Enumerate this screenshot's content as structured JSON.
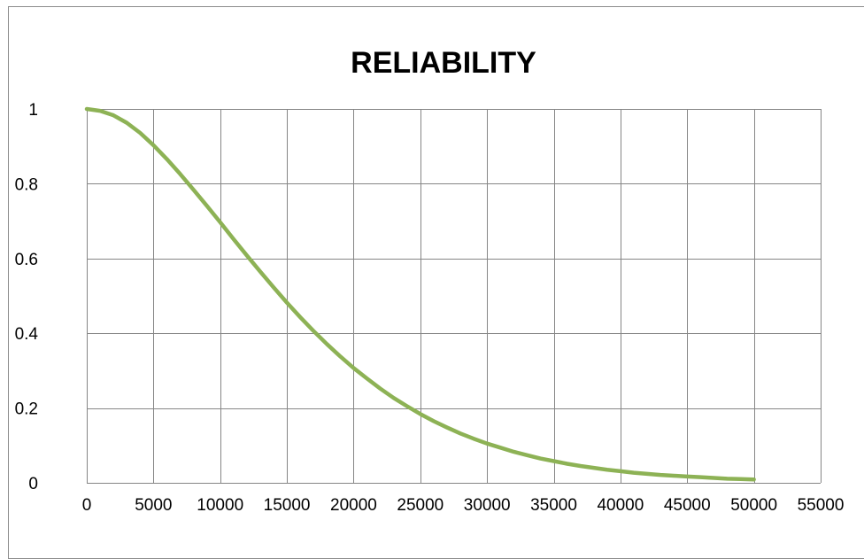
{
  "chart_data": {
    "type": "line",
    "title": "RELIABILITY",
    "xlabel": "",
    "ylabel": "",
    "xlim": [
      0,
      55000
    ],
    "ylim": [
      0,
      1
    ],
    "x_ticks": [
      0,
      5000,
      10000,
      15000,
      20000,
      25000,
      30000,
      35000,
      40000,
      45000,
      50000,
      55000
    ],
    "y_ticks": [
      0,
      0.2,
      0.4,
      0.6,
      0.8,
      1
    ],
    "grid": true,
    "legend": "none",
    "series": [
      {
        "color": "#8db255",
        "x": [
          0,
          1000,
          2000,
          3000,
          4000,
          5000,
          6000,
          7000,
          8000,
          9000,
          10000,
          11000,
          12000,
          13000,
          14000,
          15000,
          16000,
          17000,
          18000,
          19000,
          20000,
          21000,
          22000,
          23000,
          24000,
          25000,
          26000,
          27000,
          28000,
          29000,
          30000,
          31000,
          32000,
          33000,
          34000,
          35000,
          36000,
          37000,
          38000,
          39000,
          40000,
          41000,
          42000,
          43000,
          44000,
          45000,
          46000,
          47000,
          48000,
          49000,
          50000
        ],
        "y": [
          1.0,
          0.995,
          0.983,
          0.963,
          0.936,
          0.903,
          0.866,
          0.826,
          0.784,
          0.741,
          0.697,
          0.652,
          0.608,
          0.565,
          0.523,
          0.482,
          0.443,
          0.406,
          0.371,
          0.338,
          0.307,
          0.279,
          0.252,
          0.227,
          0.205,
          0.184,
          0.165,
          0.148,
          0.132,
          0.118,
          0.105,
          0.094,
          0.083,
          0.074,
          0.065,
          0.058,
          0.051,
          0.045,
          0.04,
          0.035,
          0.031,
          0.027,
          0.024,
          0.021,
          0.019,
          0.017,
          0.015,
          0.013,
          0.011,
          0.01,
          0.009
        ]
      }
    ]
  }
}
